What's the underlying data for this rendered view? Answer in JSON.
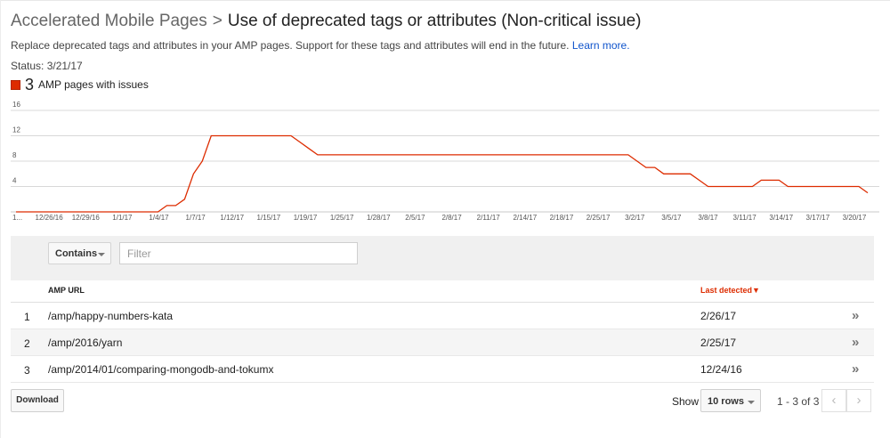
{
  "header": {
    "breadcrumb": "Accelerated Mobile Pages",
    "separator": ">",
    "issue_title": "Use of deprecated tags or attributes (Non-critical issue)",
    "description": "Replace deprecated tags and attributes in your AMP pages. Support for these tags and attributes will end in the future.",
    "learn_more": "Learn more.",
    "status": "Status: 3/21/17"
  },
  "legend": {
    "count": "3",
    "label": "AMP pages with issues",
    "color": "#dd2c00"
  },
  "chart_data": {
    "type": "line",
    "yticks": [
      "16",
      "12",
      "8",
      "4"
    ],
    "ylim": [
      0,
      16
    ],
    "xticks": [
      "1...",
      "12/26/16",
      "12/29/16",
      "1/1/17",
      "1/4/17",
      "1/7/17",
      "1/12/17",
      "1/15/17",
      "1/19/17",
      "1/25/17",
      "1/28/17",
      "2/5/17",
      "2/8/17",
      "2/11/17",
      "2/14/17",
      "2/18/17",
      "2/25/17",
      "3/2/17",
      "3/5/17",
      "3/8/17",
      "3/11/17",
      "3/14/17",
      "3/17/17",
      "3/20/17"
    ],
    "series": [
      {
        "color": "#dd2c00",
        "values": [
          0,
          0,
          0,
          0,
          0,
          0,
          0,
          0,
          0,
          0,
          0,
          0,
          0,
          0,
          0,
          0,
          0,
          1,
          1,
          2,
          6,
          8,
          12,
          12,
          12,
          12,
          12,
          12,
          12,
          12,
          12,
          12,
          11,
          10,
          9,
          9,
          9,
          9,
          9,
          9,
          9,
          9,
          9,
          9,
          9,
          9,
          9,
          9,
          9,
          9,
          9,
          9,
          9,
          9,
          9,
          9,
          9,
          9,
          9,
          9,
          9,
          9,
          9,
          9,
          9,
          9,
          9,
          9,
          9,
          9,
          8,
          7,
          7,
          6,
          6,
          6,
          6,
          5,
          4,
          4,
          4,
          4,
          4,
          4,
          5,
          5,
          5,
          4,
          4,
          4,
          4,
          4,
          4,
          4,
          4,
          4,
          3
        ]
      }
    ]
  },
  "filter": {
    "mode_label": "Contains",
    "placeholder": "Filter"
  },
  "table": {
    "col_url": "AMP URL",
    "col_date": "Last detected",
    "sort_indicator": "▼",
    "rows": [
      {
        "num": "1",
        "url": "/amp/happy-numbers-kata",
        "date": "2/26/17"
      },
      {
        "num": "2",
        "url": "/amp/2016/yarn",
        "date": "2/25/17"
      },
      {
        "num": "3",
        "url": "/amp/2014/01/comparing-mongodb-and-tokumx",
        "date": "12/24/16"
      }
    ]
  },
  "footer": {
    "download_label": "Download",
    "show_label": "Show",
    "rows_select": "10 rows",
    "pager_text": "1 - 3 of 3",
    "prev_icon": "‹",
    "next_icon": "›"
  }
}
